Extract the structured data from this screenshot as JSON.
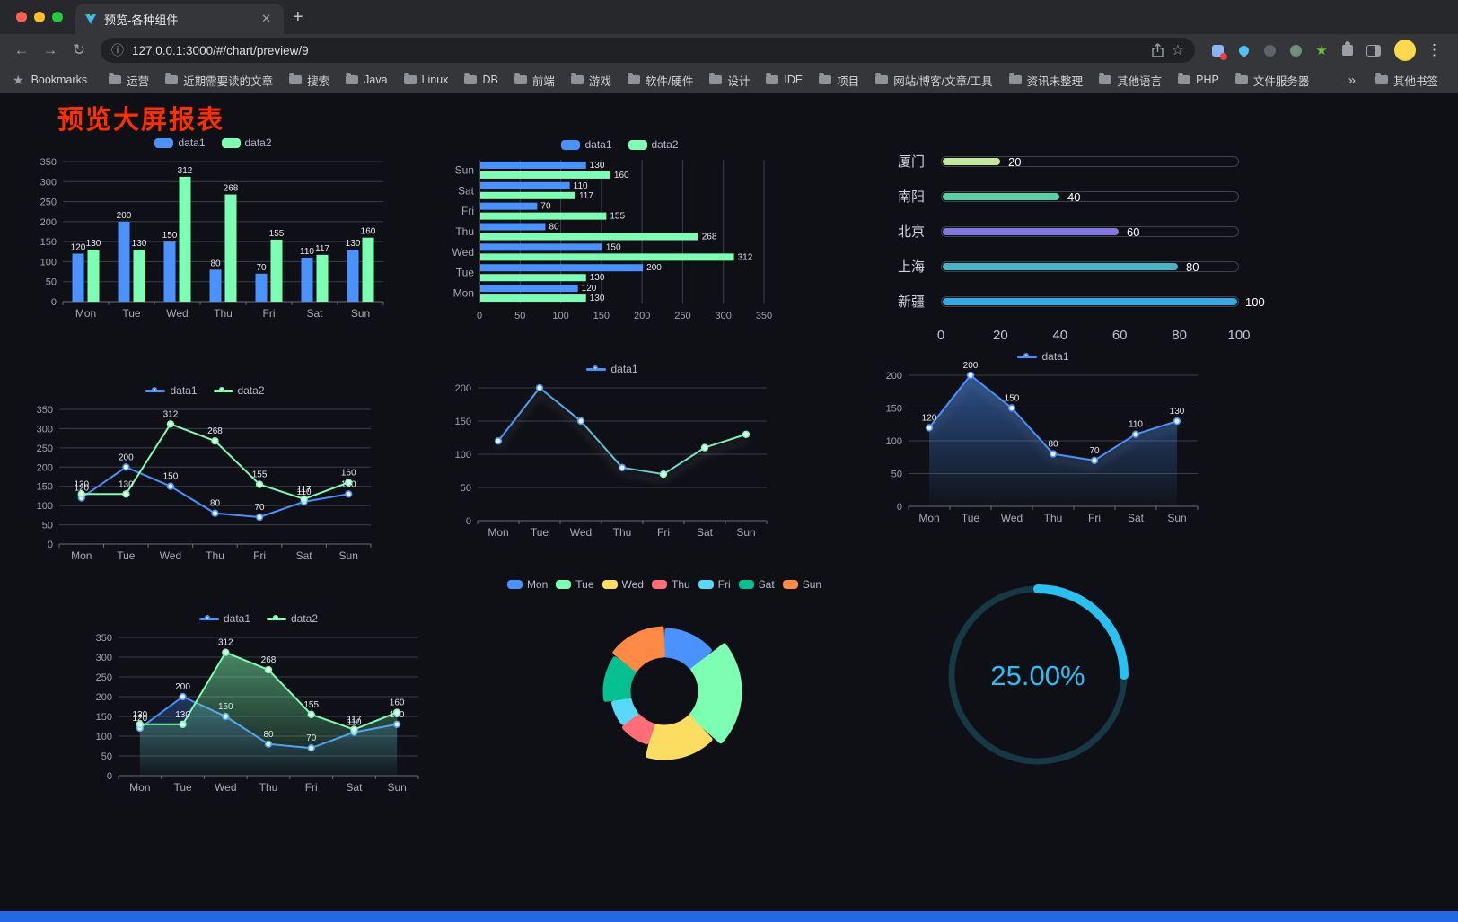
{
  "browser": {
    "tab_title": "预览-各种组件",
    "url": "127.0.0.1:3000/#/chart/preview/9",
    "bookmarks_label": "Bookmarks",
    "bookmarks": [
      "运营",
      "近期需要读的文章",
      "搜索",
      "Java",
      "Linux",
      "DB",
      "前端",
      "游戏",
      "软件/硬件",
      "设计",
      "IDE",
      "项目",
      "网站/博客/文章/工具",
      "资讯未整理",
      "其他语言",
      "PHP",
      "文件服务器"
    ],
    "other_bookmarks": "其他书签",
    "overflow_chevron": "»"
  },
  "page": {
    "title": "预览大屏报表",
    "title_color": "#ff2e00",
    "background": "#0f1015",
    "footer_color": "#2468e8"
  },
  "palette": {
    "blue": "#4992ff",
    "green": "#7cffb2",
    "yellow": "#fddd60",
    "red": "#ff6e76",
    "lightblue": "#58d9f9",
    "teal": "#05c091",
    "orange": "#ff8a45"
  },
  "chart_data": [
    {
      "type": "bar",
      "categories": [
        "Mon",
        "Tue",
        "Wed",
        "Thu",
        "Fri",
        "Sat",
        "Sun"
      ],
      "series": [
        {
          "name": "data1",
          "color": "#4992ff",
          "values": [
            120,
            200,
            150,
            80,
            70,
            110,
            130
          ]
        },
        {
          "name": "data2",
          "color": "#7cffb2",
          "values": [
            130,
            130,
            312,
            268,
            155,
            117,
            160
          ]
        }
      ],
      "ymax": 350,
      "ystep": 50,
      "labels": true,
      "legend_position": "top"
    },
    {
      "type": "hbar",
      "categories": [
        "Mon",
        "Tue",
        "Wed",
        "Thu",
        "Fri",
        "Sat",
        "Sun"
      ],
      "series": [
        {
          "name": "data1",
          "color": "#4992ff",
          "values": [
            120,
            200,
            150,
            80,
            70,
            110,
            130
          ]
        },
        {
          "name": "data2",
          "color": "#7cffb2",
          "values": [
            130,
            130,
            312,
            268,
            155,
            117,
            160
          ]
        }
      ],
      "xmax": 350,
      "xstep": 50,
      "labels": true,
      "legend_position": "top"
    },
    {
      "type": "progress",
      "max": 100,
      "ticks": [
        0,
        20,
        40,
        60,
        80,
        100
      ],
      "items": [
        {
          "label": "厦门",
          "value": 20,
          "color": "#c5e89b"
        },
        {
          "label": "南阳",
          "value": 40,
          "color": "#55d1a4"
        },
        {
          "label": "北京",
          "value": 60,
          "color": "#8278dd"
        },
        {
          "label": "上海",
          "value": 80,
          "color": "#46b5c5"
        },
        {
          "label": "新疆",
          "value": 100,
          "color": "#36a8e2"
        }
      ]
    },
    {
      "type": "line",
      "categories": [
        "Mon",
        "Tue",
        "Wed",
        "Thu",
        "Fri",
        "Sat",
        "Sun"
      ],
      "series": [
        {
          "name": "data1",
          "color": "#4992ff",
          "values": [
            120,
            200,
            150,
            80,
            70,
            110,
            130
          ]
        },
        {
          "name": "data2",
          "color": "#7cffb2",
          "values": [
            130,
            130,
            312,
            268,
            155,
            117,
            160
          ]
        }
      ],
      "ymax": 350,
      "ystep": 50,
      "labels": true,
      "legend_position": "top"
    },
    {
      "type": "line",
      "categories": [
        "Mon",
        "Tue",
        "Wed",
        "Thu",
        "Fri",
        "Sat",
        "Sun"
      ],
      "series": [
        {
          "name": "data1",
          "color": "#4992ff",
          "gradient": [
            "#4992ff",
            "#7cffb2"
          ],
          "shadow": true,
          "values": [
            120,
            200,
            150,
            80,
            70,
            110,
            130
          ]
        }
      ],
      "ymax": 200,
      "ystep": 50,
      "labels": false,
      "legend_position": "top"
    },
    {
      "type": "line",
      "categories": [
        "Mon",
        "Tue",
        "Wed",
        "Thu",
        "Fri",
        "Sat",
        "Sun"
      ],
      "series": [
        {
          "name": "data1",
          "color": "#4992ff",
          "area": "#4992ff",
          "shadow": true,
          "values": [
            120,
            200,
            150,
            80,
            70,
            110,
            130
          ]
        }
      ],
      "ymax": 200,
      "ystep": 50,
      "labels": true,
      "legend_position": "top"
    },
    {
      "type": "line",
      "categories": [
        "Mon",
        "Tue",
        "Wed",
        "Thu",
        "Fri",
        "Sat",
        "Sun"
      ],
      "series": [
        {
          "name": "data1",
          "color": "#4992ff",
          "area": "#4992ff",
          "values": [
            120,
            200,
            150,
            80,
            70,
            110,
            130
          ]
        },
        {
          "name": "data2",
          "color": "#7cffb2",
          "area": "#7cffb2",
          "values": [
            130,
            130,
            312,
            268,
            155,
            117,
            160
          ]
        }
      ],
      "ymax": 350,
      "ystep": 50,
      "labels": true,
      "legend_position": "top"
    },
    {
      "type": "pie",
      "rose": true,
      "legend_position": "top",
      "items": [
        {
          "label": "Mon",
          "value": 120,
          "color": "#4992ff"
        },
        {
          "label": "Tue",
          "value": 200,
          "color": "#7cffb2"
        },
        {
          "label": "Wed",
          "value": 150,
          "color": "#fddd60"
        },
        {
          "label": "Thu",
          "value": 80,
          "color": "#ff6e76"
        },
        {
          "label": "Fri",
          "value": 70,
          "color": "#58d9f9"
        },
        {
          "label": "Sat",
          "value": 110,
          "color": "#05c091"
        },
        {
          "label": "Sun",
          "value": 130,
          "color": "#ff8a45"
        }
      ]
    },
    {
      "type": "gauge",
      "value": 25,
      "display": "25.00%",
      "color": "#29c1f2",
      "track": "#173845"
    }
  ]
}
